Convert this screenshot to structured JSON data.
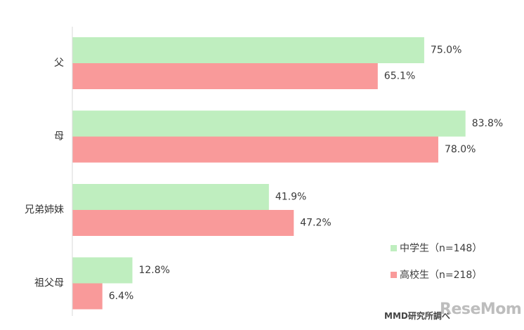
{
  "chart_data": {
    "type": "bar",
    "orientation": "horizontal",
    "categories": [
      "父",
      "母",
      "兄弟姉妹",
      "祖父母"
    ],
    "series": [
      {
        "name": "中学生（n=148）",
        "color": "#bfeebf",
        "values": [
          75.0,
          83.8,
          41.9,
          12.8
        ],
        "labels": [
          "75.0%",
          "83.8%",
          "41.9%",
          "12.8%"
        ]
      },
      {
        "name": "高校生（n=218）",
        "color": "#f99a9a",
        "values": [
          65.1,
          78.0,
          47.2,
          6.4
        ],
        "labels": [
          "65.1%",
          "78.0%",
          "47.2%",
          "6.4%"
        ]
      }
    ],
    "xlim": [
      0,
      100
    ],
    "grid": false,
    "legend_position": "bottom-right"
  },
  "source": "MMD研究所調べ",
  "watermark": "ReseMom"
}
